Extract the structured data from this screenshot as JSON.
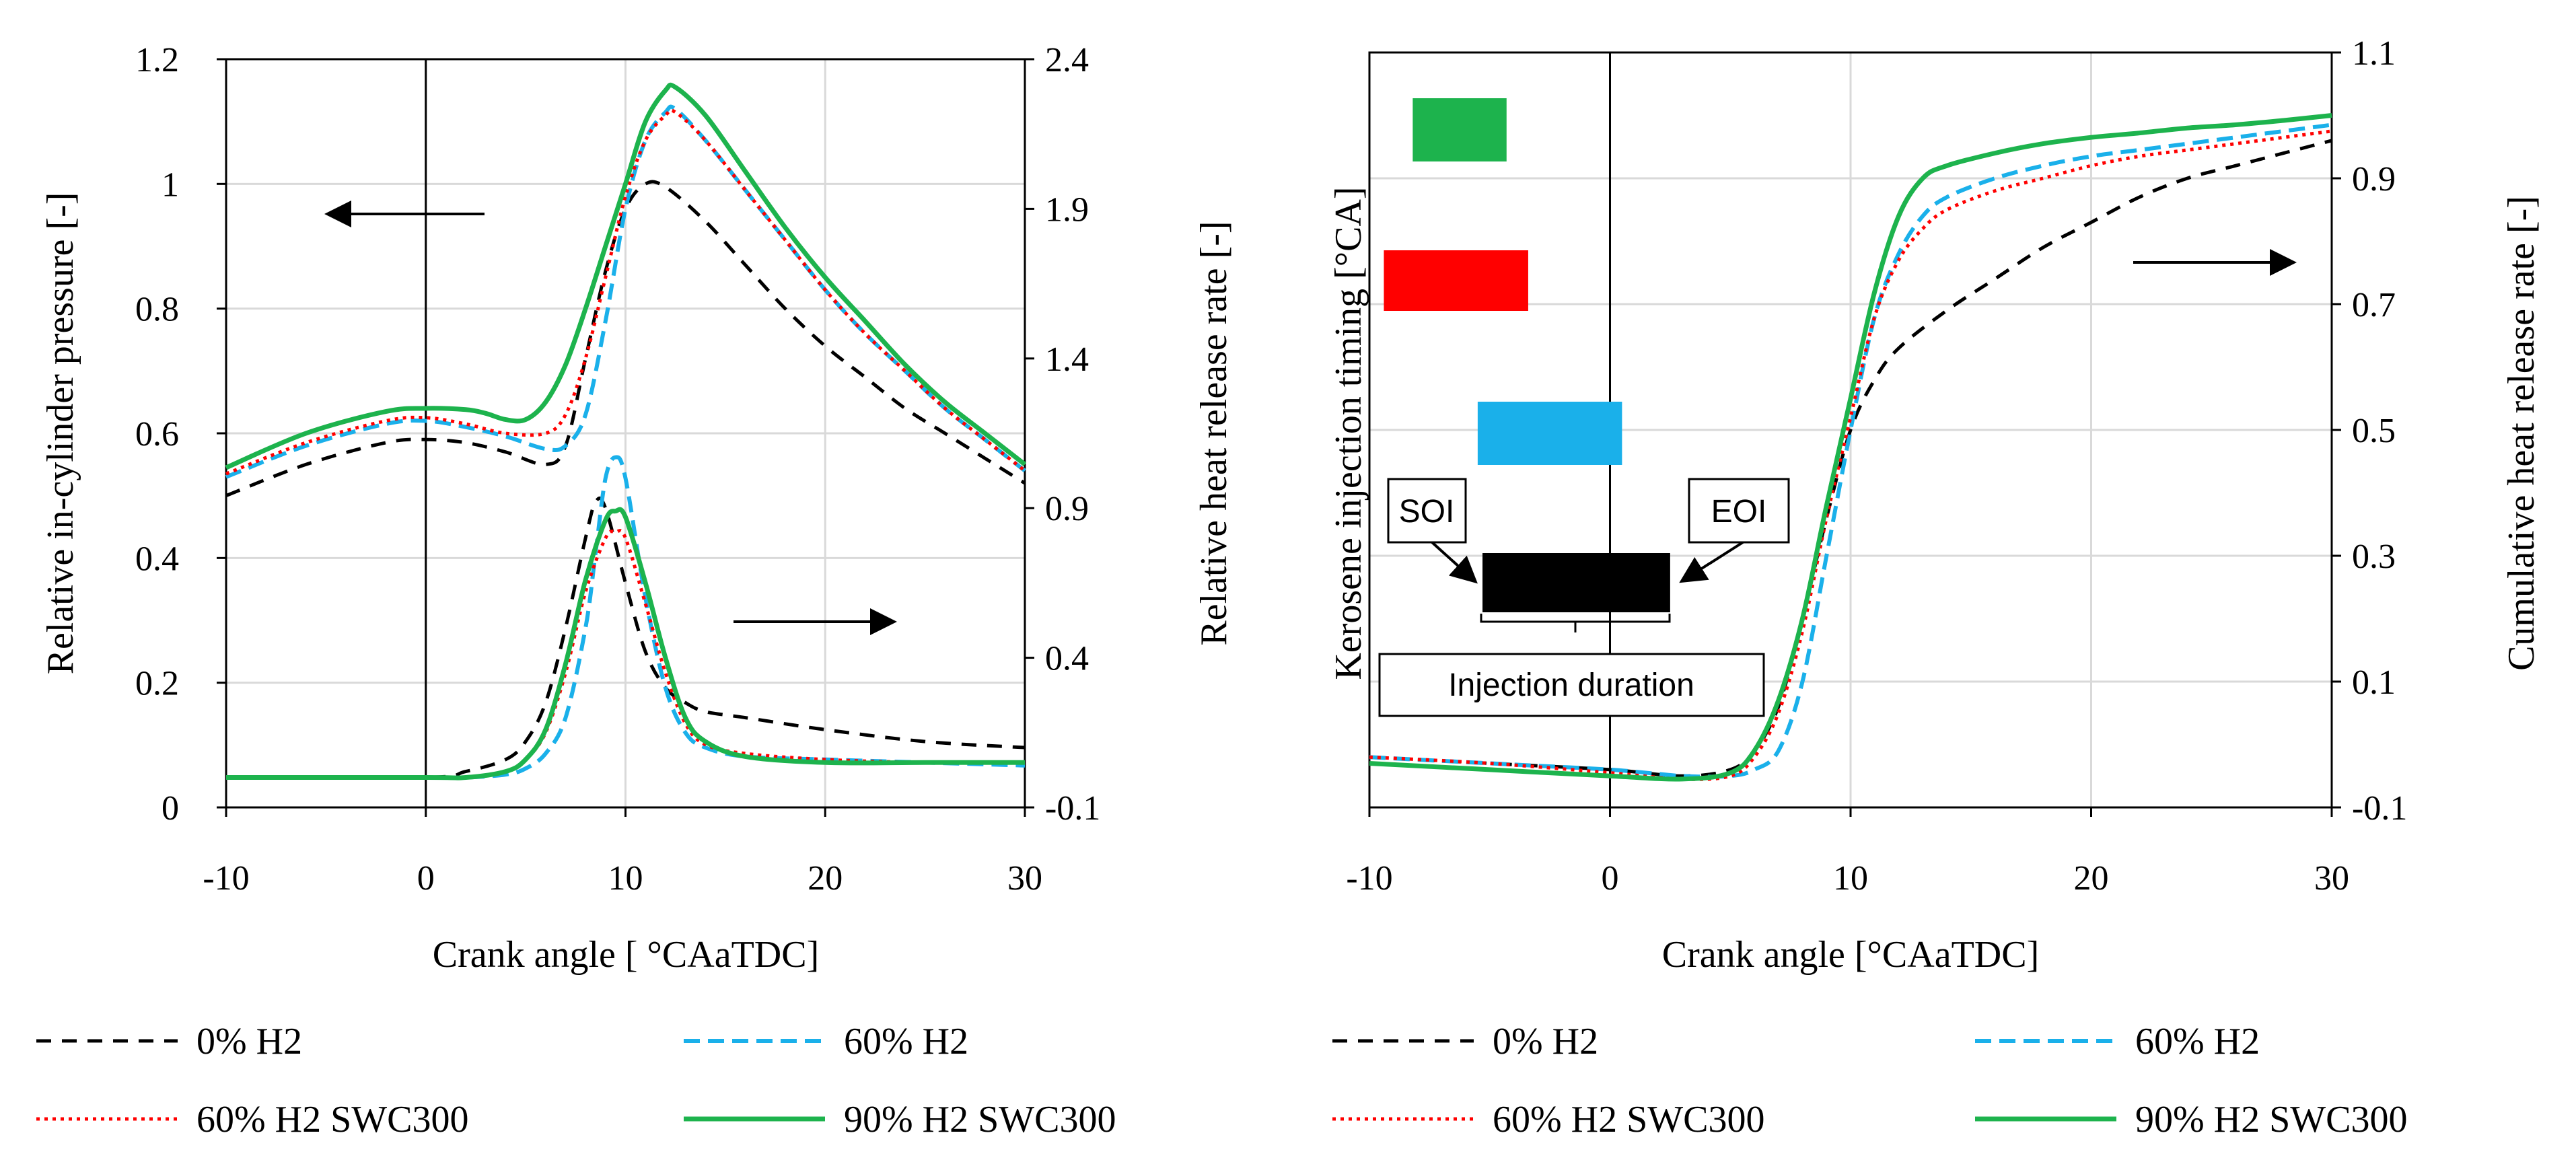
{
  "colors": {
    "h2_0": "#000000",
    "h2_60": "#1ab0ea",
    "h2_60_swc": "#ff0000",
    "h2_90_swc": "#1db34d",
    "grid": "#d9d9d9"
  },
  "legend": {
    "items": [
      {
        "key": "h2_0",
        "label": "0% H2"
      },
      {
        "key": "h2_60",
        "label": "60% H2"
      },
      {
        "key": "h2_60_swc",
        "label": "60% H2 SWC300"
      },
      {
        "key": "h2_90_swc",
        "label": "90% H2 SWC300"
      }
    ]
  },
  "chart_data": [
    {
      "type": "line",
      "title": "",
      "xlabel": "Crank angle [ °CAaTDC]",
      "ylabel": "Relative in-cylinder pressure [-]",
      "y2label": "Relative heat release rate [-]",
      "xlim": [
        -10,
        30
      ],
      "ylim": [
        0,
        1.2
      ],
      "y2lim": [
        -0.1,
        2.4
      ],
      "xticks": [
        "-10",
        "0",
        "10",
        "20",
        "30"
      ],
      "yticks": [
        "0",
        "0.2",
        "0.4",
        "0.6",
        "0.8",
        "1",
        "1.2"
      ],
      "y2ticks": [
        "-0.1",
        "0.4",
        "0.9",
        "1.4",
        "1.9",
        "2.4"
      ],
      "grid": true,
      "pressure_series": [
        {
          "key": "h2_0",
          "name": "0% H2",
          "x": [
            -10,
            -6,
            -2,
            0,
            2,
            4,
            6,
            7,
            8,
            9,
            10,
            11,
            12,
            14,
            16,
            18,
            20,
            22,
            24,
            26,
            28,
            30
          ],
          "y": [
            0.5,
            0.55,
            0.585,
            0.59,
            0.585,
            0.57,
            0.55,
            0.58,
            0.72,
            0.86,
            0.96,
            1.0,
            0.995,
            0.94,
            0.87,
            0.8,
            0.74,
            0.69,
            0.64,
            0.6,
            0.56,
            0.52
          ]
        },
        {
          "key": "h2_60",
          "name": "60% H2",
          "x": [
            -10,
            -6,
            -2,
            0,
            2,
            4,
            6,
            7,
            8,
            9,
            10,
            11,
            12,
            12.5,
            14,
            16,
            18,
            20,
            22,
            24,
            26,
            28,
            30
          ],
          "y": [
            0.53,
            0.58,
            0.615,
            0.62,
            0.61,
            0.595,
            0.575,
            0.58,
            0.63,
            0.78,
            0.96,
            1.07,
            1.115,
            1.12,
            1.07,
            0.99,
            0.91,
            0.83,
            0.76,
            0.7,
            0.64,
            0.59,
            0.54
          ]
        },
        {
          "key": "h2_60_swc",
          "name": "60% H2 SWC300",
          "x": [
            -10,
            -6,
            -2,
            0,
            2,
            4,
            6,
            7,
            8,
            9,
            10,
            11,
            12,
            12.5,
            14,
            16,
            18,
            20,
            22,
            24,
            26,
            28,
            30
          ],
          "y": [
            0.535,
            0.585,
            0.62,
            0.625,
            0.615,
            0.6,
            0.6,
            0.63,
            0.72,
            0.85,
            0.98,
            1.07,
            1.11,
            1.115,
            1.07,
            0.99,
            0.91,
            0.83,
            0.76,
            0.7,
            0.64,
            0.59,
            0.54
          ]
        },
        {
          "key": "h2_90_swc",
          "name": "90% H2 SWC300",
          "x": [
            -10,
            -6,
            -2,
            0,
            2,
            3,
            4,
            5,
            6,
            7,
            8,
            9,
            10,
            11,
            12,
            12.5,
            14,
            16,
            18,
            20,
            22,
            24,
            26,
            28,
            30
          ],
          "y": [
            0.545,
            0.6,
            0.635,
            0.64,
            0.638,
            0.632,
            0.622,
            0.622,
            0.65,
            0.71,
            0.8,
            0.9,
            1.0,
            1.1,
            1.15,
            1.155,
            1.11,
            1.02,
            0.93,
            0.85,
            0.78,
            0.71,
            0.65,
            0.6,
            0.55
          ]
        }
      ],
      "hrr_series": [
        {
          "key": "h2_0",
          "name": "0% H2",
          "x": [
            -10,
            0,
            2,
            4,
            5,
            6,
            7,
            8,
            8.5,
            9,
            10,
            11,
            12,
            13,
            14,
            16,
            20,
            25,
            30
          ],
          "y": [
            0.0,
            0.0,
            0.02,
            0.06,
            0.12,
            0.25,
            0.5,
            0.8,
            0.92,
            0.9,
            0.65,
            0.42,
            0.3,
            0.25,
            0.22,
            0.2,
            0.16,
            0.12,
            0.1
          ]
        },
        {
          "key": "h2_60",
          "name": "60% H2",
          "x": [
            -10,
            0,
            2,
            4,
            5,
            6,
            7,
            8,
            8.5,
            9,
            9.5,
            10,
            11,
            12,
            13,
            14,
            16,
            20,
            25,
            30
          ],
          "y": [
            0.0,
            0.0,
            0.0,
            0.01,
            0.03,
            0.08,
            0.2,
            0.5,
            0.75,
            1.0,
            1.07,
            1.0,
            0.6,
            0.3,
            0.15,
            0.1,
            0.07,
            0.06,
            0.05,
            0.04
          ]
        },
        {
          "key": "h2_60_swc",
          "name": "60% H2 SWC300",
          "x": [
            -10,
            0,
            2,
            4,
            5,
            6,
            7,
            8,
            9,
            9.5,
            10,
            11,
            12,
            13,
            14,
            16,
            20,
            25,
            30
          ],
          "y": [
            0.0,
            0.0,
            0.0,
            0.02,
            0.06,
            0.15,
            0.35,
            0.62,
            0.8,
            0.82,
            0.8,
            0.58,
            0.35,
            0.18,
            0.11,
            0.08,
            0.06,
            0.05,
            0.05
          ]
        },
        {
          "key": "h2_90_swc",
          "name": "90% H2 SWC300",
          "x": [
            -10,
            0,
            2,
            4,
            5,
            6,
            7,
            8,
            9,
            9.5,
            10,
            11,
            12,
            13,
            14,
            16,
            20,
            25,
            30
          ],
          "y": [
            0.0,
            0.0,
            0.0,
            0.02,
            0.06,
            0.16,
            0.38,
            0.66,
            0.86,
            0.89,
            0.87,
            0.65,
            0.4,
            0.2,
            0.12,
            0.07,
            0.05,
            0.05,
            0.05
          ]
        }
      ]
    },
    {
      "type": "line",
      "title": "",
      "xlabel": "Crank angle [°CAaTDC]",
      "ylabel": "Kerosene injection timing [°CA]",
      "y2label": "Cumulative heat release rate [-]",
      "xlim": [
        -10,
        30
      ],
      "y2lim": [
        -0.1,
        1.1
      ],
      "xticks": [
        "-10",
        "0",
        "10",
        "20",
        "30"
      ],
      "y2ticks": [
        "-0.1",
        "0.1",
        "0.3",
        "0.5",
        "0.7",
        "0.9",
        "1.1"
      ],
      "grid": true,
      "injection_bars": [
        {
          "key": "h2_90_swc",
          "start": -8.2,
          "end": -4.3
        },
        {
          "key": "h2_60_swc",
          "start": -9.4,
          "end": -3.4
        },
        {
          "key": "h2_60",
          "start": -5.5,
          "end": 0.5
        },
        {
          "key": "h2_0",
          "start": -5.3,
          "end": 2.5
        }
      ],
      "annotations": {
        "soi": "SOI",
        "eoi": "EOI",
        "duration": "Injection duration"
      },
      "cumulative_series": [
        {
          "key": "h2_0",
          "name": "0% H2",
          "x": [
            -10,
            -5,
            0,
            3,
            5,
            6,
            7,
            8,
            9,
            10,
            11,
            12,
            14,
            16,
            18,
            20,
            22,
            24,
            26,
            28,
            30
          ],
          "y": [
            -0.02,
            -0.03,
            -0.04,
            -0.05,
            -0.04,
            -0.01,
            0.06,
            0.2,
            0.36,
            0.5,
            0.58,
            0.63,
            0.69,
            0.74,
            0.79,
            0.83,
            0.87,
            0.9,
            0.92,
            0.94,
            0.96
          ]
        },
        {
          "key": "h2_60",
          "name": "60% H2",
          "x": [
            -10,
            -5,
            0,
            3,
            5,
            6,
            7,
            8,
            9,
            10,
            11,
            12,
            13,
            14,
            16,
            18,
            20,
            22,
            24,
            26,
            28,
            30
          ],
          "y": [
            -0.02,
            -0.03,
            -0.04,
            -0.05,
            -0.05,
            -0.04,
            -0.01,
            0.1,
            0.3,
            0.5,
            0.68,
            0.78,
            0.84,
            0.87,
            0.9,
            0.92,
            0.935,
            0.945,
            0.955,
            0.965,
            0.975,
            0.985
          ]
        },
        {
          "key": "h2_60_swc",
          "name": "60% H2 SWC300",
          "x": [
            -10,
            -5,
            0,
            3,
            5,
            6,
            7,
            8,
            9,
            10,
            11,
            12,
            13,
            14,
            16,
            18,
            20,
            22,
            24,
            26,
            28,
            30
          ],
          "y": [
            -0.02,
            -0.03,
            -0.045,
            -0.055,
            -0.05,
            -0.02,
            0.05,
            0.18,
            0.36,
            0.52,
            0.68,
            0.77,
            0.82,
            0.85,
            0.88,
            0.9,
            0.92,
            0.935,
            0.945,
            0.955,
            0.965,
            0.975
          ]
        },
        {
          "key": "h2_90_swc",
          "name": "90% H2 SWC300",
          "x": [
            -10,
            -5,
            0,
            3,
            5,
            6,
            7,
            8,
            9,
            10,
            11,
            12,
            13,
            14,
            16,
            18,
            20,
            22,
            24,
            26,
            28,
            30
          ],
          "y": [
            -0.03,
            -0.04,
            -0.05,
            -0.055,
            -0.045,
            -0.01,
            0.07,
            0.2,
            0.38,
            0.55,
            0.72,
            0.84,
            0.9,
            0.92,
            0.94,
            0.955,
            0.965,
            0.972,
            0.98,
            0.985,
            0.992,
            1.0
          ]
        }
      ]
    }
  ]
}
